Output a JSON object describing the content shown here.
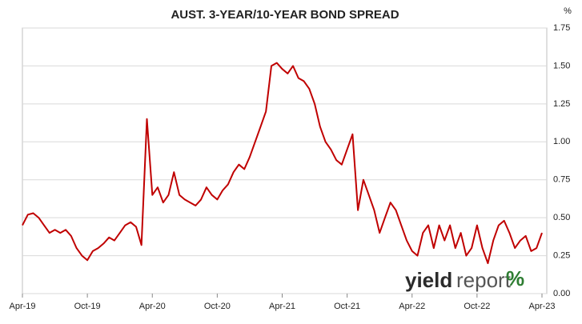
{
  "chart_data": {
    "type": "line",
    "title": "AUST. 3-YEAR/10-YEAR BOND SPREAD",
    "y_unit": "%",
    "watermark": [
      "yield",
      "report",
      "%"
    ],
    "categories": [
      "Apr-19",
      null,
      null,
      null,
      null,
      null,
      null,
      null,
      null,
      null,
      null,
      null,
      "Oct-19",
      null,
      null,
      null,
      null,
      null,
      null,
      null,
      null,
      null,
      null,
      null,
      "Apr-20",
      null,
      null,
      null,
      null,
      null,
      null,
      null,
      null,
      null,
      null,
      null,
      "Oct-20",
      null,
      null,
      null,
      null,
      null,
      null,
      null,
      null,
      null,
      null,
      null,
      "Apr-21",
      null,
      null,
      null,
      null,
      null,
      null,
      null,
      null,
      null,
      null,
      null,
      "Oct-21",
      null,
      null,
      null,
      null,
      null,
      null,
      null,
      null,
      null,
      null,
      null,
      "Apr-22",
      null,
      null,
      null,
      null,
      null,
      null,
      null,
      null,
      null,
      null,
      null,
      "Oct-22",
      null,
      null,
      null,
      null,
      null,
      null,
      null,
      null,
      null,
      null,
      null,
      "Apr-23"
    ],
    "series": [
      {
        "name": "3-year/10-year spread",
        "color": "#c00000",
        "values": [
          0.45,
          0.52,
          0.53,
          0.5,
          0.45,
          0.4,
          0.42,
          0.4,
          0.42,
          0.38,
          0.3,
          0.25,
          0.22,
          0.28,
          0.3,
          0.33,
          0.37,
          0.35,
          0.4,
          0.45,
          0.47,
          0.44,
          0.32,
          1.15,
          0.65,
          0.7,
          0.6,
          0.65,
          0.8,
          0.65,
          0.62,
          0.6,
          0.58,
          0.62,
          0.7,
          0.65,
          0.62,
          0.68,
          0.72,
          0.8,
          0.85,
          0.82,
          0.9,
          1.0,
          1.1,
          1.2,
          1.5,
          1.52,
          1.48,
          1.45,
          1.5,
          1.42,
          1.4,
          1.35,
          1.25,
          1.1,
          1.0,
          0.95,
          0.88,
          0.85,
          0.95,
          1.05,
          0.55,
          0.75,
          0.65,
          0.55,
          0.4,
          0.5,
          0.6,
          0.55,
          0.45,
          0.35,
          0.28,
          0.25,
          0.4,
          0.45,
          0.3,
          0.45,
          0.35,
          0.45,
          0.3,
          0.4,
          0.25,
          0.3,
          0.45,
          0.3,
          0.2,
          0.35,
          0.45,
          0.48,
          0.4,
          0.3,
          0.35,
          0.38,
          0.28,
          0.3,
          0.4
        ]
      }
    ],
    "ylim": [
      0,
      1.75
    ],
    "yticks": [
      {
        "value": 0,
        "label": "0.00"
      },
      {
        "value": 0.25,
        "label": "0.25"
      },
      {
        "value": 0.5,
        "label": "0.50"
      },
      {
        "value": 0.75,
        "label": "0.75"
      },
      {
        "value": 1,
        "label": "1.00"
      },
      {
        "value": 1.25,
        "label": "1.25"
      },
      {
        "value": 1.5,
        "label": "1.50"
      },
      {
        "value": 1.75,
        "label": "1.75"
      }
    ],
    "grid": true
  }
}
